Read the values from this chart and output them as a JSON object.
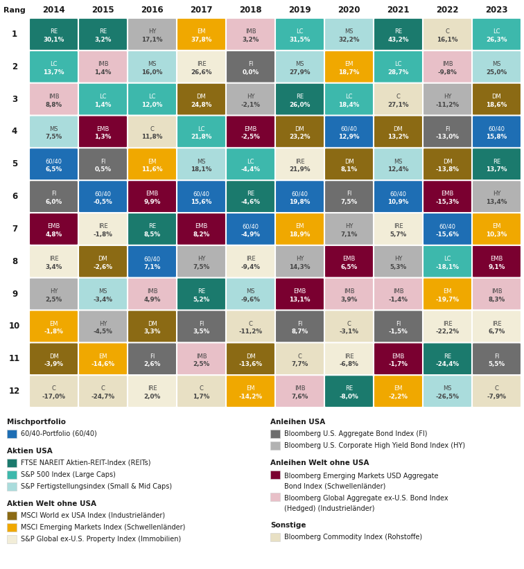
{
  "years": [
    "2014",
    "2015",
    "2016",
    "2017",
    "2018",
    "2019",
    "2020",
    "2021",
    "2022",
    "2023"
  ],
  "ranks": [
    1,
    2,
    3,
    4,
    5,
    6,
    7,
    8,
    9,
    10,
    11,
    12
  ],
  "grid": [
    [
      [
        "RE",
        "30,1%"
      ],
      [
        "RE",
        "3,2%"
      ],
      [
        "HY",
        "17,1%"
      ],
      [
        "EM",
        "37,8%"
      ],
      [
        "IMB",
        "3,2%"
      ],
      [
        "LC",
        "31,5%"
      ],
      [
        "MS",
        "32,2%"
      ],
      [
        "RE",
        "43,2%"
      ],
      [
        "C",
        "16,1%"
      ],
      [
        "LC",
        "26,3%"
      ]
    ],
    [
      [
        "LC",
        "13,7%"
      ],
      [
        "IMB",
        "1,4%"
      ],
      [
        "MS",
        "16,0%"
      ],
      [
        "IRE",
        "26,6%"
      ],
      [
        "FI",
        "0,0%"
      ],
      [
        "MS",
        "27,9%"
      ],
      [
        "EM",
        "18,7%"
      ],
      [
        "LC",
        "28,7%"
      ],
      [
        "IMB",
        "-9,8%"
      ],
      [
        "MS",
        "25,0%"
      ]
    ],
    [
      [
        "IMB",
        "8,8%"
      ],
      [
        "LC",
        "1,4%"
      ],
      [
        "LC",
        "12,0%"
      ],
      [
        "DM",
        "24,8%"
      ],
      [
        "HY",
        "-2,1%"
      ],
      [
        "RE",
        "26,0%"
      ],
      [
        "LC",
        "18,4%"
      ],
      [
        "C",
        "27,1%"
      ],
      [
        "HY",
        "-11,2%"
      ],
      [
        "DM",
        "18,6%"
      ]
    ],
    [
      [
        "MS",
        "7,5%"
      ],
      [
        "EMB",
        "1,3%"
      ],
      [
        "C",
        "11,8%"
      ],
      [
        "LC",
        "21,8%"
      ],
      [
        "EMB",
        "-2,5%"
      ],
      [
        "DM",
        "23,2%"
      ],
      [
        "60/40",
        "12,9%"
      ],
      [
        "DM",
        "13,2%"
      ],
      [
        "FI",
        "-13,0%"
      ],
      [
        "60/40",
        "15,8%"
      ]
    ],
    [
      [
        "60/40",
        "6,5%"
      ],
      [
        "FI",
        "0,5%"
      ],
      [
        "EM",
        "11,6%"
      ],
      [
        "MS",
        "18,1%"
      ],
      [
        "LC",
        "-4,4%"
      ],
      [
        "IRE",
        "21,9%"
      ],
      [
        "DM",
        "8,1%"
      ],
      [
        "MS",
        "12,4%"
      ],
      [
        "DM",
        "-13,8%"
      ],
      [
        "RE",
        "13,7%"
      ]
    ],
    [
      [
        "FI",
        "6,0%"
      ],
      [
        "60/40",
        "-0,5%"
      ],
      [
        "EMB",
        "9,9%"
      ],
      [
        "60/40",
        "15,6%"
      ],
      [
        "RE",
        "-4,6%"
      ],
      [
        "60/40",
        "19,8%"
      ],
      [
        "FI",
        "7,5%"
      ],
      [
        "60/40",
        "10,9%"
      ],
      [
        "EMB",
        "-15,3%"
      ],
      [
        "HY",
        "13,4%"
      ]
    ],
    [
      [
        "EMB",
        "4,8%"
      ],
      [
        "IRE",
        "-1,8%"
      ],
      [
        "RE",
        "8,5%"
      ],
      [
        "EMB",
        "8,2%"
      ],
      [
        "60/40",
        "-4,9%"
      ],
      [
        "EM",
        "18,9%"
      ],
      [
        "HY",
        "7,1%"
      ],
      [
        "IRE",
        "5,7%"
      ],
      [
        "60/40",
        "-15,6%"
      ],
      [
        "EM",
        "10,3%"
      ]
    ],
    [
      [
        "IRE",
        "3,4%"
      ],
      [
        "DM",
        "-2,6%"
      ],
      [
        "60/40",
        "7,1%"
      ],
      [
        "HY",
        "7,5%"
      ],
      [
        "IRE",
        "-9,4%"
      ],
      [
        "HY",
        "14,3%"
      ],
      [
        "EMB",
        "6,5%"
      ],
      [
        "HY",
        "5,3%"
      ],
      [
        "LC",
        "-18,1%"
      ],
      [
        "EMB",
        "9,1%"
      ]
    ],
    [
      [
        "HY",
        "2,5%"
      ],
      [
        "MS",
        "-3,4%"
      ],
      [
        "IMB",
        "4,9%"
      ],
      [
        "RE",
        "5,2%"
      ],
      [
        "MS",
        "-9,6%"
      ],
      [
        "EMB",
        "13,1%"
      ],
      [
        "IMB",
        "3,9%"
      ],
      [
        "IMB",
        "-1,4%"
      ],
      [
        "EM",
        "-19,7%"
      ],
      [
        "IMB",
        "8,3%"
      ]
    ],
    [
      [
        "EM",
        "-1,8%"
      ],
      [
        "HY",
        "-4,5%"
      ],
      [
        "DM",
        "3,3%"
      ],
      [
        "FI",
        "3,5%"
      ],
      [
        "C",
        "-11,2%"
      ],
      [
        "FI",
        "8,7%"
      ],
      [
        "C",
        "-3,1%"
      ],
      [
        "FI",
        "-1,5%"
      ],
      [
        "IRE",
        "-22,2%"
      ],
      [
        "IRE",
        "6,7%"
      ]
    ],
    [
      [
        "DM",
        "-3,9%"
      ],
      [
        "EM",
        "-14,6%"
      ],
      [
        "FI",
        "2,6%"
      ],
      [
        "IMB",
        "2,5%"
      ],
      [
        "DM",
        "-13,6%"
      ],
      [
        "C",
        "7,7%"
      ],
      [
        "IRE",
        "-6,8%"
      ],
      [
        "EMB",
        "-1,7%"
      ],
      [
        "RE",
        "-24,4%"
      ],
      [
        "FI",
        "5,5%"
      ]
    ],
    [
      [
        "C",
        "-17,0%"
      ],
      [
        "C",
        "-24,7%"
      ],
      [
        "IRE",
        "2,0%"
      ],
      [
        "C",
        "1,7%"
      ],
      [
        "EM",
        "-14,2%"
      ],
      [
        "IMB",
        "7,6%"
      ],
      [
        "RE",
        "-8,0%"
      ],
      [
        "EM",
        "-2,2%"
      ],
      [
        "MS",
        "-26,5%"
      ],
      [
        "C",
        "-7,9%"
      ]
    ]
  ],
  "colors": {
    "RE": "#1b7a6d",
    "LC": "#3db8ac",
    "MS": "#aadcdc",
    "DM": "#8b6a14",
    "EM": "#f0a800",
    "IRE": "#f2edd8",
    "FI": "#6e6e6e",
    "HY": "#b2b2b2",
    "EMB": "#7a0030",
    "IMB": "#e8c0c8",
    "C": "#e8e0c4",
    "60/40": "#1e6eb4"
  },
  "text_colors": {
    "RE": "#ffffff",
    "LC": "#ffffff",
    "MS": "#444444",
    "DM": "#ffffff",
    "EM": "#ffffff",
    "IRE": "#444444",
    "FI": "#ffffff",
    "HY": "#444444",
    "EMB": "#ffffff",
    "IMB": "#444444",
    "C": "#444444",
    "60/40": "#ffffff"
  },
  "legend_col1": [
    {
      "heading": "Mischportfolio",
      "items": [
        [
          "60/40",
          "60/40-Portfolio (60/40)"
        ]
      ]
    },
    {
      "heading": "Aktien USA",
      "items": [
        [
          "RE",
          "FTSE NAREIT Aktien-REIT-Index (REITs)"
        ],
        [
          "LC",
          "S&P 500 Index (Large Caps)"
        ],
        [
          "MS",
          "S&P Fertigstellungsindex (Small & Mid Caps)"
        ]
      ]
    },
    {
      "heading": "Aktien Welt ohne USA",
      "items": [
        [
          "DM",
          "MSCI World ex USA Index (Industrieländer)"
        ],
        [
          "EM",
          "MSCI Emerging Markets Index (Schwellenländer)"
        ],
        [
          "IRE",
          "S&P Global ex-U.S. Property Index (Immobilien)"
        ]
      ]
    }
  ],
  "legend_col2": [
    {
      "heading": "Anleihen USA",
      "items": [
        [
          "FI",
          "Bloomberg U.S. Aggregate Bond Index (FI)"
        ],
        [
          "HY",
          "Bloomberg U.S. Corporate High Yield Bond Index (HY)"
        ]
      ]
    },
    {
      "heading": "Anleihen Welt ohne USA",
      "items": [
        [
          "EMB",
          "Bloomberg Emerging Markets USD Aggregate\nBond Index (Schwellenländer)"
        ],
        [
          "IMB",
          "Bloomberg Global Aggregate ex-U.S. Bond Index\n(Hedged) (Industrieländer)"
        ]
      ]
    },
    {
      "heading": "Sonstige",
      "items": [
        [
          "C",
          "Bloomberg Commodity Index (Rohstoffe)"
        ]
      ]
    }
  ]
}
